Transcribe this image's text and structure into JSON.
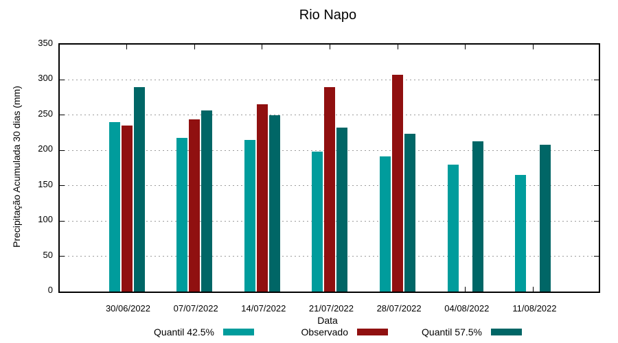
{
  "title": "Rio Napo",
  "colors": {
    "background": "#ffffff",
    "axis": "#000000",
    "grid": "#9a9a9a",
    "quantil_low": "#009c9c",
    "observado": "#901010",
    "quantil_high": "#006666"
  },
  "chart_data": {
    "type": "bar",
    "title": "Rio Napo",
    "xlabel": "Data",
    "ylabel": "Precipitação Acumulada 30 dias (mm)",
    "ylim": [
      0,
      350
    ],
    "ytick_step": 50,
    "grid": true,
    "legend_position": "bottom",
    "categories": [
      "30/06/2022",
      "07/07/2022",
      "14/07/2022",
      "21/07/2022",
      "28/07/2022",
      "04/08/2022",
      "11/08/2022"
    ],
    "series": [
      {
        "name": "Quantil 42.5%",
        "color": "#009c9c",
        "values": [
          240,
          218,
          215,
          198,
          192,
          180,
          165
        ]
      },
      {
        "name": "Observado",
        "color": "#901010",
        "values": [
          235,
          244,
          265,
          290,
          307,
          null,
          null
        ]
      },
      {
        "name": "Quantil 57.5%",
        "color": "#006666",
        "values": [
          290,
          257,
          250,
          232,
          224,
          213,
          208
        ]
      }
    ]
  }
}
